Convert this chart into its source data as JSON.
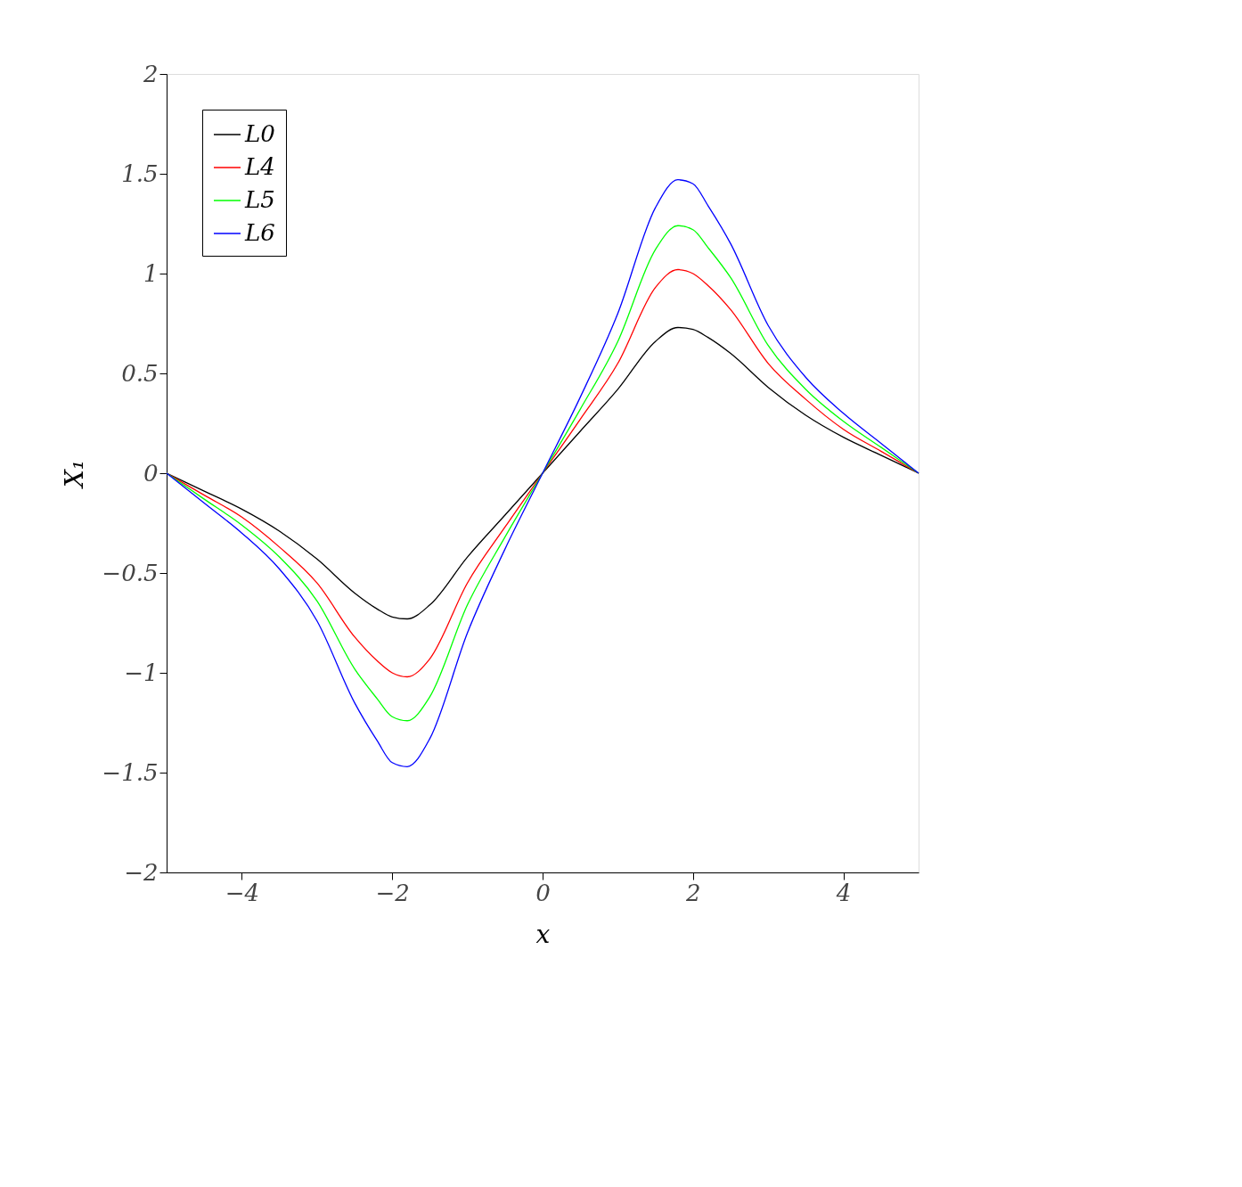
{
  "chart_data": {
    "type": "line",
    "xlabel": "x",
    "ylabel": "X₁",
    "x": [
      -5,
      -4.5,
      -4,
      -3.5,
      -3,
      -2.5,
      -2.2,
      -2,
      -1.8,
      -1.5,
      -1,
      -0.5,
      0,
      0.5,
      1,
      1.5,
      1.8,
      2,
      2.2,
      2.5,
      3,
      3.5,
      4,
      4.5,
      5
    ],
    "series": [
      {
        "name": "L0",
        "color": "#000000",
        "values": [
          0,
          -0.09,
          -0.18,
          -0.29,
          -0.43,
          -0.6,
          -0.68,
          -0.72,
          -0.73,
          -0.66,
          -0.42,
          -0.21,
          0,
          0.21,
          0.42,
          0.66,
          0.73,
          0.72,
          0.68,
          0.6,
          0.43,
          0.29,
          0.18,
          0.09,
          0
        ]
      },
      {
        "name": "L4",
        "color": "#ff0000",
        "values": [
          0,
          -0.11,
          -0.22,
          -0.37,
          -0.55,
          -0.82,
          -0.94,
          -1.0,
          -1.02,
          -0.93,
          -0.55,
          -0.27,
          0,
          0.27,
          0.55,
          0.93,
          1.02,
          1.0,
          0.94,
          0.82,
          0.55,
          0.37,
          0.22,
          0.11,
          0
        ]
      },
      {
        "name": "L5",
        "color": "#00ff00",
        "values": [
          0,
          -0.13,
          -0.26,
          -0.42,
          -0.64,
          -0.98,
          -1.13,
          -1.22,
          -1.24,
          -1.12,
          -0.66,
          -0.32,
          0,
          0.32,
          0.66,
          1.12,
          1.24,
          1.22,
          1.13,
          0.98,
          0.64,
          0.42,
          0.26,
          0.13,
          0
        ]
      },
      {
        "name": "L6",
        "color": "#0000ff",
        "values": [
          0,
          -0.15,
          -0.3,
          -0.48,
          -0.74,
          -1.15,
          -1.34,
          -1.45,
          -1.47,
          -1.33,
          -0.8,
          -0.38,
          0,
          0.38,
          0.8,
          1.33,
          1.47,
          1.45,
          1.34,
          1.15,
          0.74,
          0.48,
          0.3,
          0.15,
          0
        ]
      }
    ],
    "xlim": [
      -5,
      5
    ],
    "ylim": [
      -2,
      2
    ],
    "xticks": [
      -4,
      -2,
      0,
      2,
      4
    ],
    "yticks": [
      -2,
      -1.5,
      -1,
      -0.5,
      0,
      0.5,
      1,
      1.5,
      2
    ],
    "legend": "top left",
    "grid": false,
    "marker": "none",
    "line_style": "solid"
  }
}
